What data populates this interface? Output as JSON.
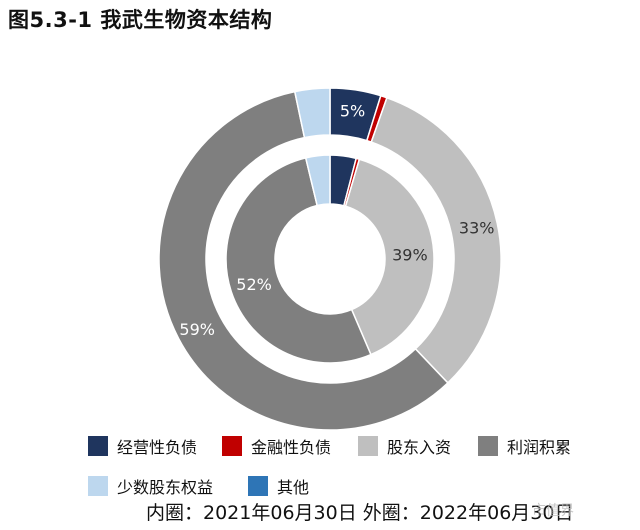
{
  "title": "图5.3-1 我武生物资本结构",
  "caption": "内圈：2021年06月30日 外圈：2022年06月30日",
  "watermark": "市值界",
  "chart_data": {
    "type": "donut",
    "series": [
      {
        "name": "2021年06月30日",
        "ring": "inner",
        "values": [
          4.0,
          0.5,
          38.5,
          52.0,
          3.7,
          0.0
        ],
        "labels": [
          "",
          "",
          "39%",
          "52%",
          "",
          ""
        ]
      },
      {
        "name": "2022年06月30日",
        "ring": "outer",
        "values": [
          4.8,
          0.6,
          32.5,
          58.8,
          3.3,
          0.0
        ],
        "labels": [
          "5%",
          "",
          "33%",
          "59%",
          "",
          ""
        ]
      }
    ],
    "categories": [
      "经营性负债",
      "金融性负债",
      "股东入资",
      "利润积累",
      "少数股东权益",
      "其他"
    ],
    "colors": [
      "#1f355e",
      "#c00000",
      "#bfbfbf",
      "#7f7f7f",
      "#bdd7ee",
      "#2e75b6"
    ],
    "legend_position": "bottom"
  }
}
